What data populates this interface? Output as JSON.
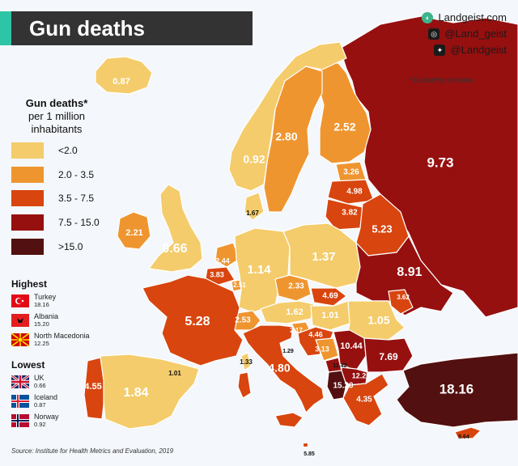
{
  "title": "Gun deaths",
  "brand": {
    "site": "Landgeist.com",
    "instagram": "@Land_geist",
    "twitter": "@Landgeist"
  },
  "note": "* Excluding suicides",
  "legend": {
    "title_line1": "Gun deaths*",
    "title_line2": "per 1 million",
    "title_line3": "inhabitants",
    "items": [
      {
        "label": "<2.0",
        "color": "#f4cc6b"
      },
      {
        "label": "2.0 - 3.5",
        "color": "#ef9530"
      },
      {
        "label": "3.5 - 7.5",
        "color": "#d8450f"
      },
      {
        "label": "7.5 - 15.0",
        "color": "#961010"
      },
      {
        "label": ">15.0",
        "color": "#521010"
      }
    ]
  },
  "highest": {
    "heading": "Highest",
    "entries": [
      {
        "name": "Turkey",
        "value": "18.16"
      },
      {
        "name": "Albania",
        "value": "15.20"
      },
      {
        "name": "North Macedonia",
        "value": "12.25"
      }
    ]
  },
  "lowest": {
    "heading": "Lowest",
    "entries": [
      {
        "name": "UK",
        "value": "0.66"
      },
      {
        "name": "Iceland",
        "value": "0.87"
      },
      {
        "name": "Norway",
        "value": "0.92"
      }
    ]
  },
  "source": "Source: Institute for Health Metrics and Evaluation, 2019",
  "countries": [
    {
      "id": "iceland",
      "value": "0.87"
    },
    {
      "id": "norway",
      "value": "0.92"
    },
    {
      "id": "sweden",
      "value": "2.80"
    },
    {
      "id": "finland",
      "value": "2.52"
    },
    {
      "id": "russia",
      "value": "9.73"
    },
    {
      "id": "estonia",
      "value": "3.26"
    },
    {
      "id": "latvia",
      "value": "4.98"
    },
    {
      "id": "lithuania",
      "value": "3.82"
    },
    {
      "id": "belarus",
      "value": "5.23"
    },
    {
      "id": "denmark",
      "value": "1.67"
    },
    {
      "id": "ireland",
      "value": "2.21"
    },
    {
      "id": "uk",
      "value": "0.66"
    },
    {
      "id": "netherlands",
      "value": "2.44"
    },
    {
      "id": "belgium",
      "value": "3.83"
    },
    {
      "id": "luxembourg",
      "value": "2.51"
    },
    {
      "id": "germany",
      "value": "1.14"
    },
    {
      "id": "poland",
      "value": "1.37"
    },
    {
      "id": "ukraine",
      "value": "8.91"
    },
    {
      "id": "czechia",
      "value": "2.33"
    },
    {
      "id": "slovakia",
      "value": "4.69"
    },
    {
      "id": "moldova",
      "value": "3.62"
    },
    {
      "id": "france",
      "value": "5.28"
    },
    {
      "id": "switzerland",
      "value": "2.53"
    },
    {
      "id": "austria",
      "value": "1.62"
    },
    {
      "id": "hungary",
      "value": "1.01"
    },
    {
      "id": "romania",
      "value": "1.05"
    },
    {
      "id": "slovenia",
      "value": "2.17"
    },
    {
      "id": "croatia",
      "value": "4.46"
    },
    {
      "id": "bosnia",
      "value": "3.13"
    },
    {
      "id": "serbia",
      "value": "10.44"
    },
    {
      "id": "bulgaria",
      "value": "7.69"
    },
    {
      "id": "montenegro",
      "value": "11.42"
    },
    {
      "id": "kosovo",
      "value": "12.25"
    },
    {
      "id": "albania",
      "value": "15.20"
    },
    {
      "id": "greece",
      "value": "4.35"
    },
    {
      "id": "turkey",
      "value": "18.16"
    },
    {
      "id": "italy",
      "value": "4.80"
    },
    {
      "id": "san-marino",
      "value": "1.29"
    },
    {
      "id": "corsica",
      "value": "1.33"
    },
    {
      "id": "andorra",
      "value": "1.01"
    },
    {
      "id": "spain",
      "value": "1.84"
    },
    {
      "id": "portugal",
      "value": "4.55"
    },
    {
      "id": "cyprus",
      "value": "5.64"
    },
    {
      "id": "malta",
      "value": "5.85"
    }
  ]
}
